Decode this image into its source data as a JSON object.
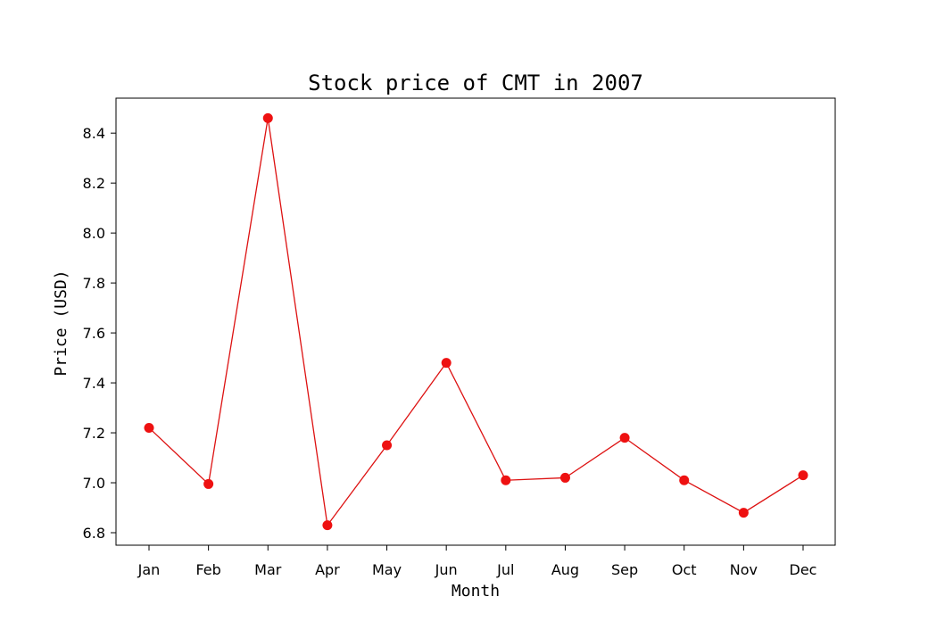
{
  "chart_data": {
    "type": "line",
    "title": "Stock price of CMT in 2007",
    "xlabel": "Month",
    "ylabel": "Price (USD)",
    "categories": [
      "Jan",
      "Feb",
      "Mar",
      "Apr",
      "May",
      "Jun",
      "Jul",
      "Aug",
      "Sep",
      "Oct",
      "Nov",
      "Dec"
    ],
    "series": [
      {
        "values": [
          7.22,
          6.995,
          8.46,
          6.83,
          7.15,
          7.48,
          7.01,
          7.02,
          7.18,
          7.01,
          6.88,
          7.03
        ]
      }
    ],
    "ylim": [
      6.75,
      8.54
    ],
    "yticks": [
      "6.8",
      "7.0",
      "7.2",
      "7.4",
      "7.6",
      "7.8",
      "8.0",
      "8.2",
      "8.4"
    ],
    "grid": false,
    "colors": {
      "line": "#dd1111",
      "marker": "#ee1111",
      "axes": "#000000"
    }
  }
}
